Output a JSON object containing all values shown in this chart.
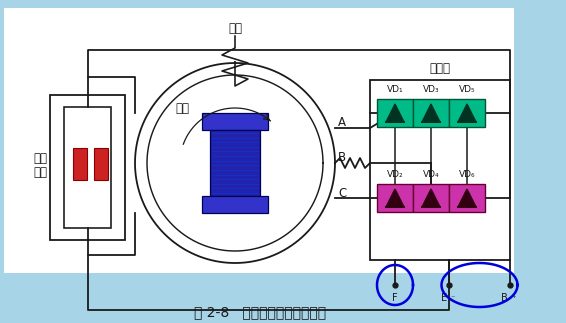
{
  "title": "图 2-8   交流发电机工作原理图",
  "bg_outer": "#a8d4e8",
  "bg_panel": "#ffffff",
  "rotor_blue": "#3333cc",
  "rotor_dark": "#2222aa",
  "brush_red": "#cc2222",
  "top_diode_color": "#00bb88",
  "bot_diode_color": "#cc33aa",
  "wire_color": "#1a1a1a",
  "stator_label": "定子",
  "rotor_label": "转子",
  "brush_label_1": "滑环",
  "brush_label_2": "电刷",
  "rectifier_label": "整流器",
  "label_A": "A",
  "label_B": "B",
  "label_C": "C",
  "vd_top": [
    "VD₁",
    "VD₃",
    "VD₅"
  ],
  "vd_bot": [
    "VD₂",
    "VD₄",
    "VD₆"
  ],
  "terminal_F": "F",
  "terminal_E": "E",
  "terminal_B": "B",
  "font_cn": "SimHei",
  "fs": 8.5,
  "fs_title": 10
}
